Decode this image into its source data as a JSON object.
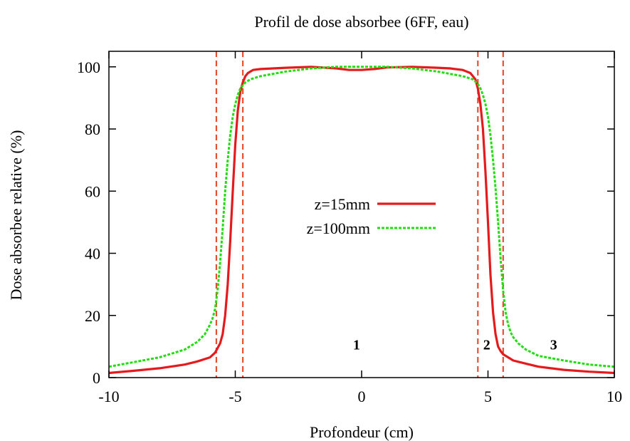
{
  "chart_data": {
    "type": "line",
    "title": "Profil de dose absorbee (6FF, eau)",
    "xlabel": "Profondeur (cm)",
    "ylabel": "Dose absorbee relative (%)",
    "xlim": [
      -10,
      10
    ],
    "ylim": [
      0,
      105
    ],
    "x_ticks": [
      -10,
      -5,
      0,
      5,
      10
    ],
    "x_tick_labels": [
      "-10",
      "-5",
      "0",
      "5",
      "10"
    ],
    "y_ticks": [
      0,
      20,
      40,
      60,
      80,
      100
    ],
    "y_tick_labels": [
      "0",
      "20",
      "40",
      "60",
      "80",
      "100"
    ],
    "grid": false,
    "legend_position": "center",
    "series": [
      {
        "name": "z=15mm",
        "color": "#e41a1c",
        "style": "solid",
        "x": [
          -10,
          -9,
          -8,
          -7,
          -6.5,
          -6,
          -5.8,
          -5.6,
          -5.5,
          -5.4,
          -5.3,
          -5.2,
          -5.1,
          -5.0,
          -4.9,
          -4.8,
          -4.7,
          -4.6,
          -4.5,
          -4.3,
          -4.0,
          -3.5,
          -3.0,
          -2.0,
          -1.0,
          -0.5,
          0,
          0.5,
          1.0,
          2.0,
          3.0,
          3.5,
          4.0,
          4.3,
          4.5,
          4.6,
          4.7,
          4.8,
          4.9,
          5.0,
          5.1,
          5.2,
          5.3,
          5.4,
          5.5,
          5.6,
          5.8,
          6.0,
          6.5,
          7.0,
          8.0,
          9.0,
          10
        ],
        "y": [
          1.5,
          2.2,
          3.0,
          4.2,
          5.2,
          6.5,
          8.0,
          11,
          14,
          20,
          30,
          44,
          60,
          75,
          86,
          92,
          95,
          97,
          98,
          99,
          99.3,
          99.5,
          99.7,
          100,
          99.5,
          99.0,
          99.0,
          99.3,
          99.8,
          100,
          99.7,
          99.5,
          99.0,
          98,
          96,
          93,
          88,
          80,
          66,
          50,
          33,
          21,
          14,
          10,
          8.5,
          7.5,
          6.5,
          5.5,
          4.5,
          3.5,
          2.5,
          1.9,
          1.5
        ]
      },
      {
        "name": "z=100mm",
        "color": "#22dd11",
        "style": "dashed",
        "x": [
          -10,
          -9,
          -8,
          -7,
          -6.5,
          -6.2,
          -6.0,
          -5.9,
          -5.8,
          -5.7,
          -5.6,
          -5.5,
          -5.4,
          -5.3,
          -5.2,
          -5.1,
          -5.0,
          -4.9,
          -4.8,
          -4.7,
          -4.6,
          -4.4,
          -4.0,
          -3.0,
          -2.0,
          -1.0,
          0,
          1.0,
          2.0,
          3.0,
          4.0,
          4.4,
          4.6,
          4.7,
          4.8,
          4.9,
          5.0,
          5.1,
          5.2,
          5.3,
          5.4,
          5.5,
          5.6,
          5.7,
          5.8,
          5.9,
          6.0,
          6.2,
          6.5,
          7.0,
          8.0,
          9.0,
          10
        ],
        "y": [
          3.5,
          5.0,
          6.5,
          9.0,
          11.5,
          14,
          17,
          19,
          22,
          28,
          37,
          48,
          60,
          70,
          78,
          84,
          88,
          91,
          93,
          94,
          95,
          96,
          97,
          98.5,
          99.5,
          100,
          100,
          100,
          99.5,
          98.5,
          97,
          96,
          94.5,
          93,
          91,
          88,
          84,
          78,
          70,
          61,
          50,
          38,
          28,
          21,
          17,
          14.5,
          13,
          11,
          9.0,
          7.0,
          5.5,
          4.2,
          3.5
        ]
      }
    ],
    "vertical_lines": {
      "color": "#e8401f",
      "style": "dashed",
      "x": [
        -5.75,
        -4.7,
        4.6,
        5.6
      ]
    },
    "annotations": [
      {
        "text": "1",
        "x": -0.2,
        "y": 9
      },
      {
        "text": "2",
        "x": 4.95,
        "y": 9
      },
      {
        "text": "3",
        "x": 7.6,
        "y": 9
      }
    ]
  }
}
